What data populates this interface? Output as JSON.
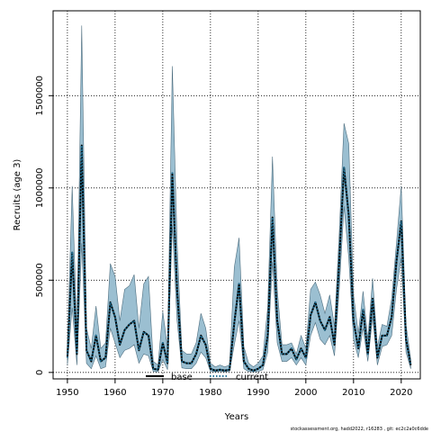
{
  "chart_data": {
    "type": "line",
    "title": "",
    "xlabel": "Years",
    "ylabel": "Recruits (age 3)",
    "xlim": [
      1947,
      2024
    ],
    "ylim": [
      -35000,
      1960000
    ],
    "x_ticks": [
      1950,
      1960,
      1970,
      1980,
      1990,
      2000,
      2010,
      2020
    ],
    "y_ticks": [
      0,
      500000,
      1000000,
      1500000
    ],
    "y_tick_labels": [
      "0",
      "500000",
      "1000000",
      "1500000"
    ],
    "grid": true,
    "legend_position": "bottom-center",
    "legend": [
      {
        "name": "base",
        "style": "solid"
      },
      {
        "name": "current",
        "style": "dotted"
      }
    ],
    "band_color": "#9bbfd1",
    "band_line_color": "#4f6f80",
    "x": [
      1950,
      1951,
      1952,
      1953,
      1954,
      1955,
      1956,
      1957,
      1958,
      1959,
      1960,
      1961,
      1962,
      1963,
      1964,
      1965,
      1966,
      1967,
      1968,
      1969,
      1970,
      1971,
      1972,
      1973,
      1974,
      1975,
      1976,
      1977,
      1978,
      1979,
      1980,
      1981,
      1982,
      1983,
      1984,
      1985,
      1986,
      1987,
      1988,
      1989,
      1990,
      1991,
      1992,
      1993,
      1994,
      1995,
      1996,
      1997,
      1998,
      1999,
      2000,
      2001,
      2002,
      2003,
      2004,
      2005,
      2006,
      2007,
      2008,
      2009,
      2010,
      2011,
      2012,
      2013,
      2014,
      2015,
      2016,
      2017,
      2018,
      2019,
      2020,
      2021,
      2022
    ],
    "series": [
      {
        "name": "base",
        "values": [
          80000,
          650000,
          100000,
          1230000,
          120000,
          60000,
          200000,
          60000,
          80000,
          380000,
          300000,
          150000,
          230000,
          260000,
          280000,
          120000,
          220000,
          200000,
          20000,
          15000,
          160000,
          50000,
          1080000,
          450000,
          60000,
          50000,
          50000,
          100000,
          200000,
          150000,
          20000,
          10000,
          15000,
          10000,
          15000,
          270000,
          480000,
          60000,
          20000,
          10000,
          20000,
          40000,
          200000,
          840000,
          280000,
          100000,
          100000,
          130000,
          70000,
          130000,
          80000,
          310000,
          380000,
          280000,
          230000,
          300000,
          150000,
          600000,
          1110000,
          850000,
          280000,
          130000,
          340000,
          100000,
          400000,
          80000,
          200000,
          200000,
          300000,
          600000,
          820000,
          180000,
          40000
        ]
      },
      {
        "name": "current",
        "values": [
          80000,
          650000,
          100000,
          1230000,
          120000,
          60000,
          200000,
          60000,
          80000,
          380000,
          300000,
          150000,
          230000,
          260000,
          280000,
          120000,
          220000,
          200000,
          20000,
          15000,
          160000,
          50000,
          1080000,
          450000,
          60000,
          50000,
          50000,
          100000,
          200000,
          150000,
          20000,
          10000,
          15000,
          10000,
          15000,
          270000,
          480000,
          60000,
          20000,
          10000,
          20000,
          40000,
          200000,
          840000,
          280000,
          100000,
          100000,
          130000,
          70000,
          130000,
          80000,
          310000,
          380000,
          280000,
          230000,
          300000,
          150000,
          600000,
          1110000,
          850000,
          280000,
          130000,
          340000,
          100000,
          400000,
          80000,
          200000,
          200000,
          300000,
          600000,
          820000,
          180000,
          40000
        ]
      }
    ],
    "upper": [
      130000,
      1010000,
      200000,
      1880000,
      240000,
      130000,
      360000,
      130000,
      160000,
      590000,
      520000,
      280000,
      450000,
      470000,
      530000,
      240000,
      480000,
      520000,
      60000,
      40000,
      330000,
      130000,
      1660000,
      700000,
      120000,
      100000,
      100000,
      160000,
      320000,
      240000,
      50000,
      30000,
      40000,
      30000,
      40000,
      570000,
      730000,
      140000,
      50000,
      30000,
      50000,
      90000,
      350000,
      1170000,
      450000,
      150000,
      150000,
      160000,
      100000,
      200000,
      130000,
      450000,
      490000,
      420000,
      320000,
      420000,
      250000,
      750000,
      1350000,
      1240000,
      420000,
      210000,
      440000,
      180000,
      510000,
      140000,
      260000,
      250000,
      400000,
      700000,
      1010000,
      260000,
      70000
    ],
    "lower": [
      40000,
      350000,
      40000,
      700000,
      50000,
      20000,
      90000,
      20000,
      30000,
      240000,
      160000,
      80000,
      120000,
      130000,
      150000,
      50000,
      100000,
      90000,
      5000,
      3000,
      70000,
      15000,
      800000,
      280000,
      25000,
      20000,
      20000,
      50000,
      110000,
      80000,
      5000,
      3000,
      5000,
      3000,
      5000,
      150000,
      280000,
      20000,
      5000,
      3000,
      5000,
      15000,
      110000,
      600000,
      160000,
      60000,
      60000,
      80000,
      40000,
      80000,
      40000,
      200000,
      270000,
      180000,
      150000,
      200000,
      90000,
      450000,
      900000,
      620000,
      180000,
      80000,
      240000,
      60000,
      300000,
      40000,
      140000,
      150000,
      200000,
      450000,
      620000,
      110000,
      20000
    ]
  },
  "footnote": "stockassessment.org, hadd2022, r16283 ,  git: ec2c2a0c6dde"
}
